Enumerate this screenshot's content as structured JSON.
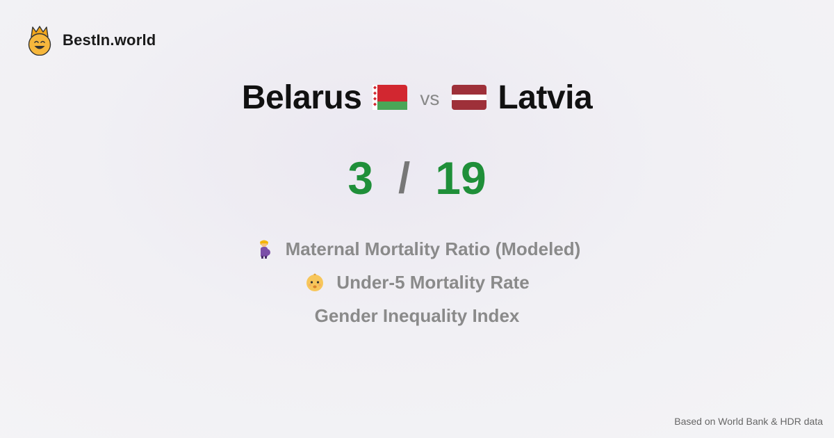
{
  "brand": {
    "name": "BestIn.world",
    "icon": "grinning-face-with-crown-icon"
  },
  "comparison": {
    "left_country": "Belarus",
    "left_flag": "belarus-flag-icon",
    "vs_label": "vs",
    "right_country": "Latvia",
    "right_flag": "latvia-flag-icon"
  },
  "score": {
    "left": "3",
    "separator": "/",
    "right": "19",
    "color": "#1f8f39"
  },
  "metrics": [
    {
      "label": "Maternal Mortality Ratio (Modeled)",
      "icon": "pregnant-woman-icon"
    },
    {
      "label": "Under-5 Mortality Rate",
      "icon": "baby-icon"
    },
    {
      "label": "Gender Inequality Index",
      "icon": ""
    }
  ],
  "footer": {
    "source": "Based on World Bank & HDR data"
  }
}
